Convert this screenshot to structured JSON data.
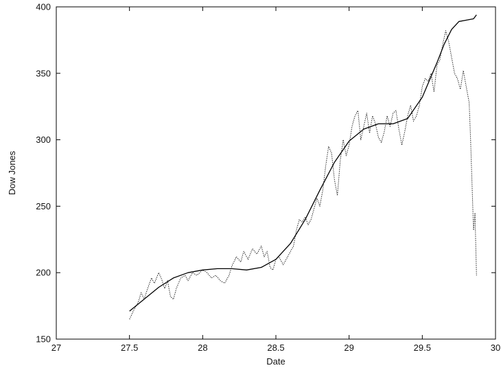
{
  "chart_data": {
    "type": "line",
    "xlabel": "Date",
    "ylabel": "Dow Jones",
    "xlim": [
      27,
      30
    ],
    "ylim": [
      150,
      400
    ],
    "xticks": [
      27,
      27.5,
      28,
      28.5,
      29,
      29.5,
      30
    ],
    "xtick_labels": [
      "27",
      "27.5",
      "28",
      "28.5",
      "29",
      "29.5",
      "30"
    ],
    "yticks": [
      150,
      200,
      250,
      300,
      350,
      400
    ],
    "ytick_labels": [
      "150",
      "200",
      "250",
      "300",
      "350",
      "400"
    ],
    "grid": false,
    "legend": false,
    "series": [
      {
        "style": "dotted",
        "color": "#000000",
        "x": [
          27.5,
          27.53,
          27.56,
          27.58,
          27.6,
          27.63,
          27.65,
          27.67,
          27.7,
          27.72,
          27.74,
          27.76,
          27.78,
          27.8,
          27.82,
          27.85,
          27.88,
          27.9,
          27.93,
          27.96,
          28.0,
          28.03,
          28.06,
          28.09,
          28.12,
          28.15,
          28.18,
          28.2,
          28.23,
          28.26,
          28.28,
          28.31,
          28.34,
          28.37,
          28.4,
          28.42,
          28.44,
          28.46,
          28.48,
          28.5,
          28.52,
          28.55,
          28.58,
          28.6,
          28.62,
          28.64,
          28.66,
          28.68,
          28.7,
          28.72,
          28.74,
          28.76,
          28.78,
          28.8,
          28.82,
          28.84,
          28.86,
          28.88,
          28.9,
          28.92,
          28.94,
          28.96,
          28.98,
          29.0,
          29.02,
          29.04,
          29.06,
          29.08,
          29.1,
          29.12,
          29.14,
          29.16,
          29.18,
          29.2,
          29.22,
          29.24,
          29.26,
          29.28,
          29.3,
          29.32,
          29.34,
          29.36,
          29.38,
          29.4,
          29.42,
          29.44,
          29.46,
          29.48,
          29.5,
          29.52,
          29.54,
          29.56,
          29.58,
          29.6,
          29.62,
          29.64,
          29.66,
          29.68,
          29.7,
          29.72,
          29.74,
          29.76,
          29.78,
          29.8,
          29.82,
          29.83,
          29.84,
          29.85,
          29.86,
          29.87
        ],
        "y": [
          165,
          172,
          178,
          185,
          180,
          190,
          196,
          192,
          200,
          195,
          188,
          194,
          182,
          180,
          188,
          196,
          198,
          194,
          200,
          198,
          202,
          200,
          196,
          198,
          194,
          192,
          198,
          205,
          212,
          208,
          216,
          210,
          218,
          214,
          220,
          212,
          216,
          204,
          202,
          210,
          212,
          206,
          212,
          216,
          220,
          232,
          240,
          238,
          242,
          236,
          240,
          248,
          256,
          250,
          262,
          280,
          295,
          290,
          270,
          258,
          285,
          300,
          288,
          296,
          310,
          318,
          322,
          300,
          310,
          320,
          305,
          318,
          312,
          302,
          298,
          306,
          318,
          310,
          320,
          322,
          308,
          296,
          306,
          318,
          326,
          314,
          318,
          326,
          340,
          346,
          344,
          350,
          336,
          356,
          360,
          372,
          382,
          374,
          362,
          350,
          346,
          338,
          352,
          340,
          328,
          300,
          265,
          232,
          245,
          198
        ]
      },
      {
        "style": "solid",
        "color": "#000000",
        "x": [
          27.5,
          27.6,
          27.7,
          27.8,
          27.9,
          28.0,
          28.1,
          28.2,
          28.3,
          28.4,
          28.5,
          28.6,
          28.7,
          28.8,
          28.9,
          29.0,
          29.1,
          29.2,
          29.3,
          29.4,
          29.5,
          29.6,
          29.65,
          29.7,
          29.75,
          29.8,
          29.85,
          29.87
        ],
        "y": [
          171,
          180,
          189,
          196,
          200,
          202,
          203,
          203,
          202,
          204,
          210,
          222,
          240,
          262,
          283,
          299,
          308,
          312,
          312,
          316,
          332,
          358,
          372,
          383,
          389,
          390,
          391,
          394
        ]
      }
    ]
  }
}
